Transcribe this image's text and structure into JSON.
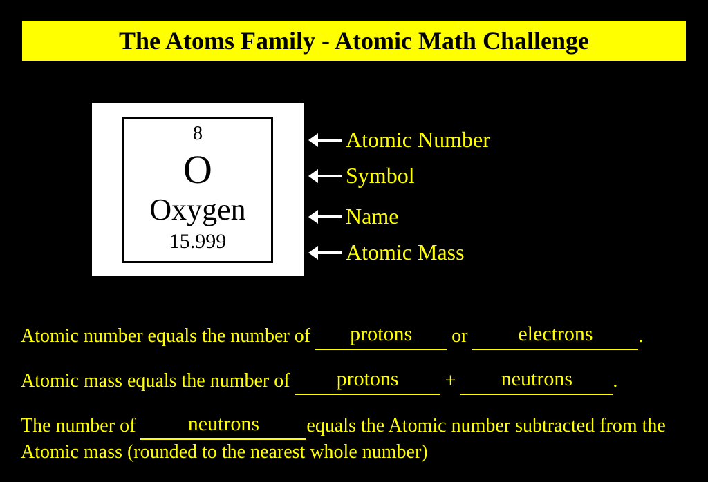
{
  "colors": {
    "background": "#000000",
    "title_bg": "#ffff00",
    "title_text": "#000000",
    "body_text": "#ffff00",
    "arrow": "#ffffff",
    "card_bg": "#ffffff",
    "card_border": "#000000",
    "underline": "#ffff00"
  },
  "title": "The Atoms Family - Atomic Math Challenge",
  "element": {
    "atomic_number": "8",
    "symbol": "O",
    "name": "Oxygen",
    "atomic_mass": "15.999"
  },
  "labels": {
    "atomic_number": "Atomic Number",
    "symbol": "Symbol",
    "name": "Name",
    "atomic_mass": "Atomic Mass"
  },
  "sentence1": {
    "prefix": "Atomic number equals the number of ",
    "blank1": "protons",
    "mid": " or ",
    "blank2": "electrons",
    "suffix": "."
  },
  "sentence2": {
    "prefix": "Atomic mass equals the number of ",
    "blank1": "protons",
    "mid": " + ",
    "blank2": "neutrons",
    "suffix": "."
  },
  "sentence3": {
    "prefix": "The number of ",
    "blank1": "neutrons",
    "suffix": "equals the Atomic number subtracted from the Atomic mass (rounded to the nearest whole number)"
  },
  "layout": {
    "blank1_w_s1": 190,
    "blank2_w_s1": 240,
    "blank1_w_s2": 210,
    "blank2_w_s2": 220,
    "blank1_w_s3": 240
  }
}
